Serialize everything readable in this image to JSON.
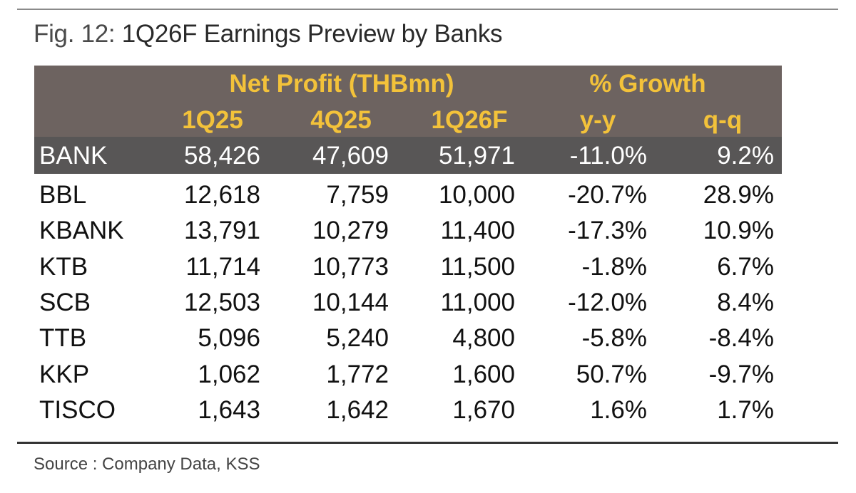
{
  "title_prefix": "Fig. 12:",
  "title": "1Q26F Earnings Preview by Banks",
  "source": "Source : Company Data, KSS",
  "colors": {
    "header_bg": "#6d6360",
    "total_bg": "#585656",
    "header_text": "#f3c23a"
  },
  "chart_data": {
    "type": "table",
    "group_headers": [
      "Net Profit (THBmn)",
      "% Growth"
    ],
    "columns": [
      "1Q25",
      "4Q25",
      "1Q26F",
      "y-y",
      "q-q"
    ],
    "total_row": {
      "name": "BANK",
      "values": [
        "58,426",
        "47,609",
        "51,971",
        "-11.0%",
        "9.2%"
      ]
    },
    "rows": [
      {
        "name": "BBL",
        "values": [
          "12,618",
          "7,759",
          "10,000",
          "-20.7%",
          "28.9%"
        ]
      },
      {
        "name": "KBANK",
        "values": [
          "13,791",
          "10,279",
          "11,400",
          "-17.3%",
          "10.9%"
        ]
      },
      {
        "name": "KTB",
        "values": [
          "11,714",
          "10,773",
          "11,500",
          "-1.8%",
          "6.7%"
        ]
      },
      {
        "name": "SCB",
        "values": [
          "12,503",
          "10,144",
          "11,000",
          "-12.0%",
          "8.4%"
        ]
      },
      {
        "name": "TTB",
        "values": [
          "5,096",
          "5,240",
          "4,800",
          "-5.8%",
          "-8.4%"
        ]
      },
      {
        "name": "KKP",
        "values": [
          "1,062",
          "1,772",
          "1,600",
          "50.7%",
          "-9.7%"
        ]
      },
      {
        "name": "TISCO",
        "values": [
          "1,643",
          "1,642",
          "1,670",
          "1.6%",
          "1.7%"
        ]
      }
    ]
  }
}
